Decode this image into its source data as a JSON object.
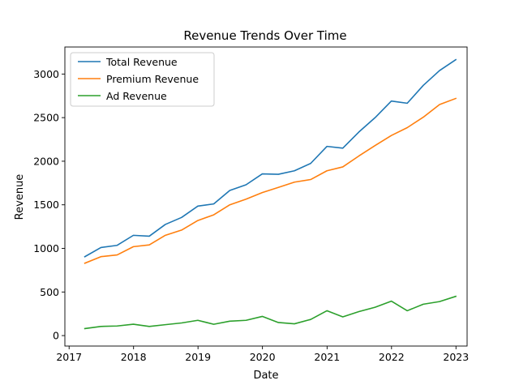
{
  "chart_data": {
    "type": "line",
    "title": "Revenue Trends Over Time",
    "xlabel": "Date",
    "ylabel": "Revenue",
    "x": [
      "2017-03-31",
      "2017-06-30",
      "2017-09-30",
      "2017-12-31",
      "2018-03-31",
      "2018-06-30",
      "2018-09-30",
      "2018-12-31",
      "2019-03-31",
      "2019-06-30",
      "2019-09-30",
      "2019-12-31",
      "2020-03-31",
      "2020-06-30",
      "2020-09-30",
      "2020-12-31",
      "2021-03-31",
      "2021-06-30",
      "2021-09-30",
      "2021-12-31",
      "2022-03-31",
      "2022-06-30",
      "2022-09-30",
      "2022-12-31"
    ],
    "xlim": [
      "2016-12-08",
      "2023-03-05"
    ],
    "ylim": [
      -120,
      3310
    ],
    "xticks": [
      "2017",
      "2018",
      "2019",
      "2020",
      "2021",
      "2022",
      "2023"
    ],
    "yticks": [
      0,
      500,
      1000,
      1500,
      2000,
      2500,
      3000
    ],
    "grid": false,
    "legend_position": "top-left",
    "series": [
      {
        "name": "Total Revenue",
        "color": "#1f77b4",
        "values": [
          905,
          1010,
          1035,
          1150,
          1140,
          1275,
          1355,
          1485,
          1510,
          1665,
          1730,
          1855,
          1850,
          1890,
          1975,
          2170,
          2150,
          2335,
          2500,
          2690,
          2665,
          2870,
          3040,
          3165
        ]
      },
      {
        "name": "Premium Revenue",
        "color": "#ff7f0e",
        "values": [
          830,
          905,
          925,
          1020,
          1040,
          1150,
          1210,
          1320,
          1385,
          1500,
          1565,
          1640,
          1700,
          1760,
          1790,
          1890,
          1935,
          2060,
          2180,
          2295,
          2385,
          2505,
          2650,
          2720
        ]
      },
      {
        "name": "Ad Revenue",
        "color": "#2ca02c",
        "values": [
          80,
          105,
          110,
          130,
          105,
          125,
          145,
          175,
          130,
          165,
          175,
          220,
          150,
          135,
          185,
          285,
          215,
          275,
          325,
          395,
          285,
          360,
          390,
          450
        ]
      }
    ]
  }
}
